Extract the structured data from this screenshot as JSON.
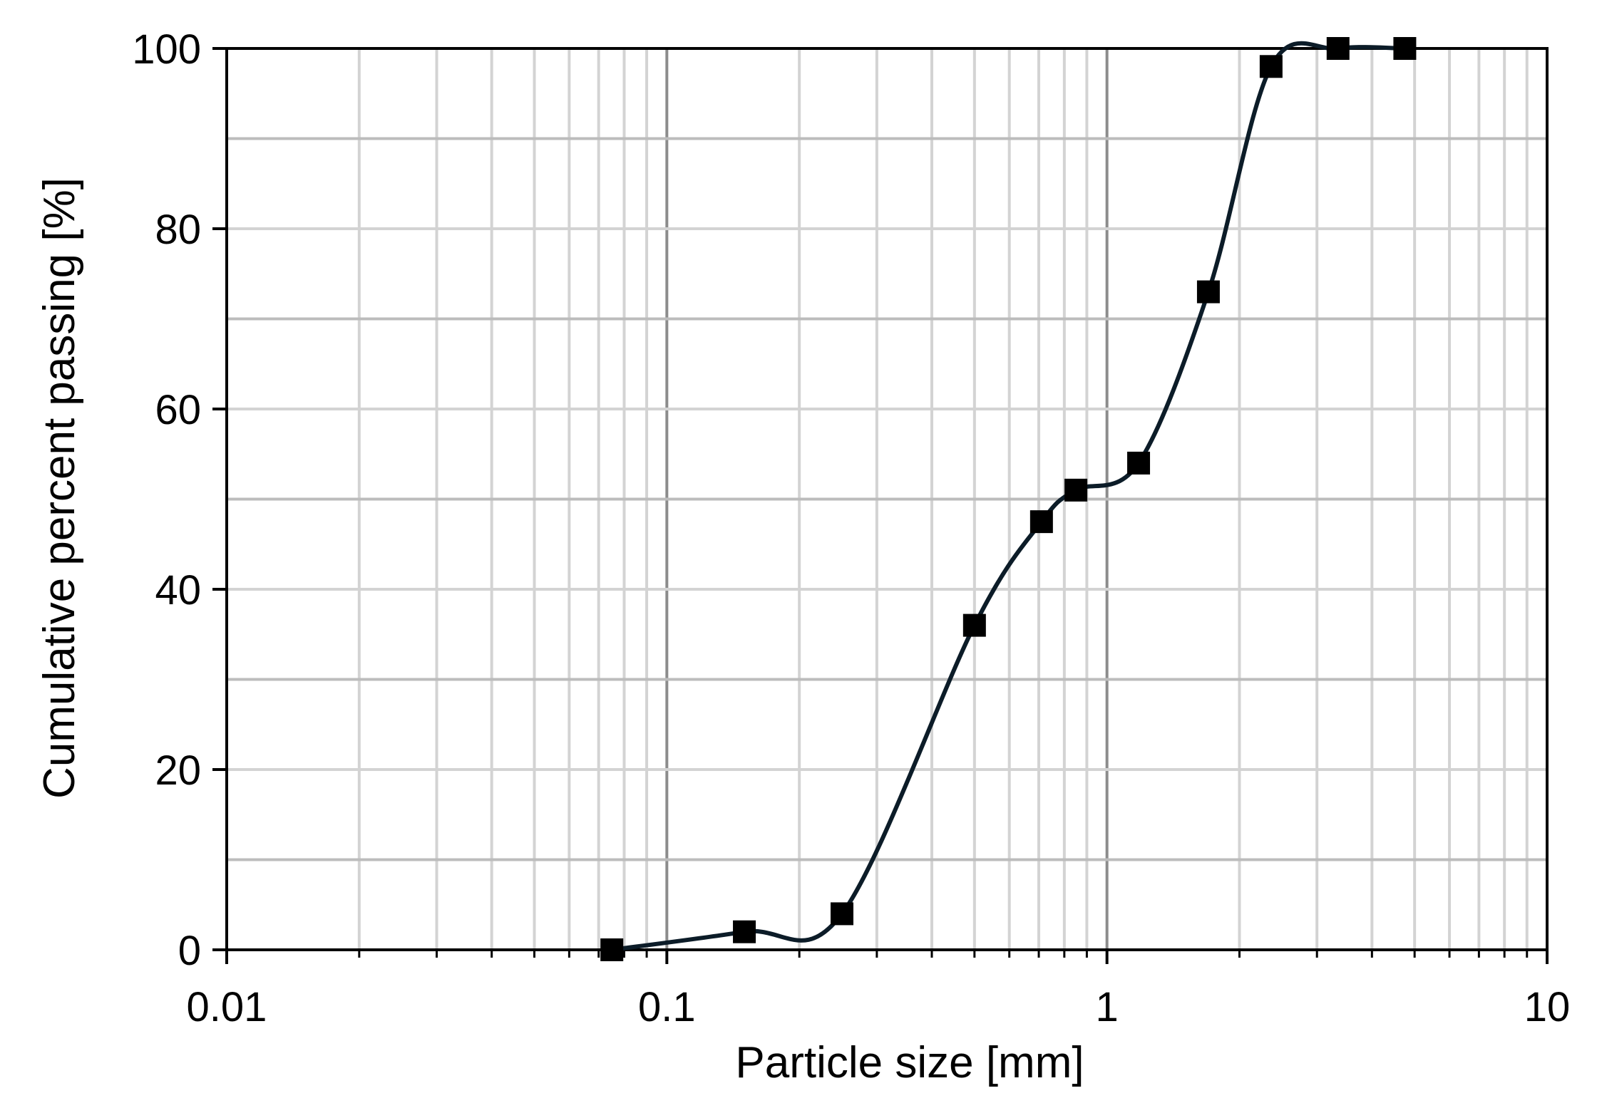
{
  "chart_data": {
    "type": "scatter",
    "xlabel": "Particle size [mm]",
    "ylabel": "Cumulative percent passing [%]",
    "xscale": "log",
    "xlim": [
      0.01,
      10
    ],
    "ylim": [
      0,
      100
    ],
    "x_ticks": [
      0.01,
      0.1,
      1,
      10
    ],
    "x_tick_labels": [
      "0.01",
      "0.1",
      "1",
      "10"
    ],
    "y_ticks": [
      0,
      20,
      40,
      60,
      80,
      100
    ],
    "y_tick_labels": [
      "0",
      "20",
      "40",
      "60",
      "80",
      "100"
    ],
    "grid": {
      "major": true,
      "minor": true,
      "y_minor_step": 10
    },
    "legend": "none",
    "line_style": "smooth",
    "series": [
      {
        "marker": "square",
        "color": "#0c1c28",
        "marker_color": "#000000",
        "x": [
          0.075,
          0.15,
          0.25,
          0.5,
          0.71,
          0.85,
          1.18,
          1.7,
          2.36,
          3.35,
          4.75
        ],
        "y": [
          0,
          2,
          4,
          36,
          47.5,
          51,
          54,
          73,
          98,
          100,
          100
        ]
      }
    ]
  }
}
